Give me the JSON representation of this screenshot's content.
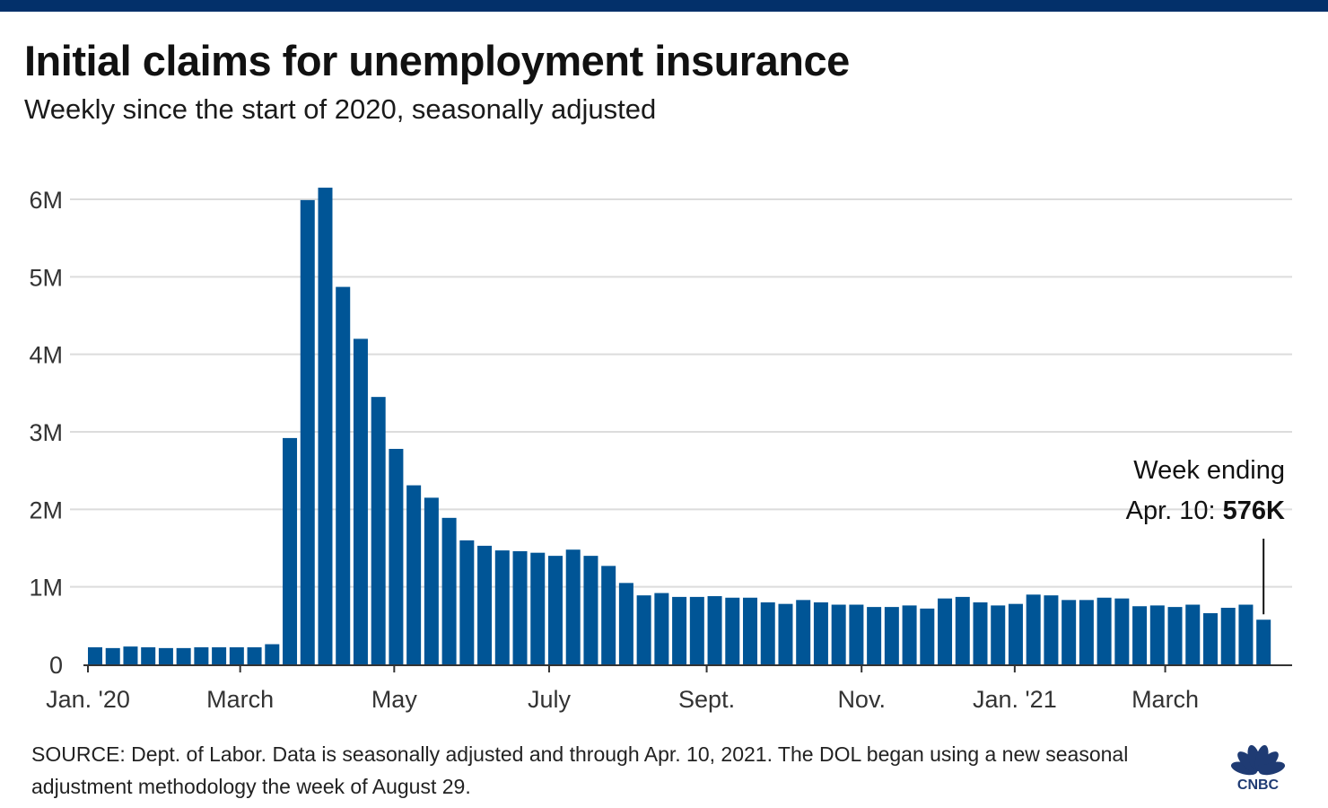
{
  "header": {
    "title": "Initial claims for unemployment insurance",
    "subtitle": "Weekly since the start of 2020, seasonally adjusted"
  },
  "colors": {
    "top_bar": "#03306a",
    "bar": "#005596",
    "grid": "#dcdcdc",
    "axis": "#333333",
    "logo": "#1f3b73"
  },
  "annotation": {
    "line1": "Week ending",
    "line2_prefix": "Apr. 10: ",
    "line2_value": "576K"
  },
  "footer": {
    "source": "SOURCE: Dept. of Labor. Data is seasonally adjusted and through Apr. 10, 2021. The DOL began using a new seasonal adjustment methodology the week of August 29.",
    "logo_text": "CNBC"
  },
  "chart_data": {
    "type": "bar",
    "title": "Initial claims for unemployment insurance",
    "subtitle": "Weekly since the start of 2020, seasonally adjusted",
    "xlabel": "",
    "ylabel": "",
    "ylim": [
      0,
      6000000
    ],
    "yticks": [
      {
        "value": 0,
        "label": "0"
      },
      {
        "value": 1000000,
        "label": "1M"
      },
      {
        "value": 2000000,
        "label": "2M"
      },
      {
        "value": 3000000,
        "label": "3M"
      },
      {
        "value": 4000000,
        "label": "4M"
      },
      {
        "value": 5000000,
        "label": "5M"
      },
      {
        "value": 6000000,
        "label": "6M"
      }
    ],
    "xticks": [
      {
        "index": 0,
        "label": "Jan. '20"
      },
      {
        "index": 8.6,
        "label": "March"
      },
      {
        "index": 17.3,
        "label": "May"
      },
      {
        "index": 26.05,
        "label": "July"
      },
      {
        "index": 34.95,
        "label": "Sept."
      },
      {
        "index": 43.7,
        "label": "Nov."
      },
      {
        "index": 52.35,
        "label": "Jan. '21"
      },
      {
        "index": 60.85,
        "label": "March"
      }
    ],
    "grid": true,
    "legend": "none",
    "series": [
      {
        "name": "Initial claims",
        "values": [
          220000,
          210000,
          230000,
          220000,
          210000,
          210000,
          220000,
          220000,
          220000,
          220000,
          260000,
          2920000,
          5990000,
          6150000,
          4870000,
          4200000,
          3450000,
          2780000,
          2310000,
          2150000,
          1890000,
          1600000,
          1530000,
          1470000,
          1460000,
          1440000,
          1400000,
          1480000,
          1400000,
          1270000,
          1050000,
          890000,
          920000,
          870000,
          870000,
          880000,
          860000,
          860000,
          800000,
          780000,
          830000,
          800000,
          770000,
          770000,
          740000,
          740000,
          760000,
          720000,
          850000,
          870000,
          800000,
          760000,
          780000,
          900000,
          890000,
          830000,
          830000,
          860000,
          850000,
          750000,
          760000,
          740000,
          770000,
          660000,
          730000,
          770000,
          576000
        ]
      }
    ],
    "annotation": {
      "index": 66,
      "text": "Week ending Apr. 10: 576K"
    }
  }
}
